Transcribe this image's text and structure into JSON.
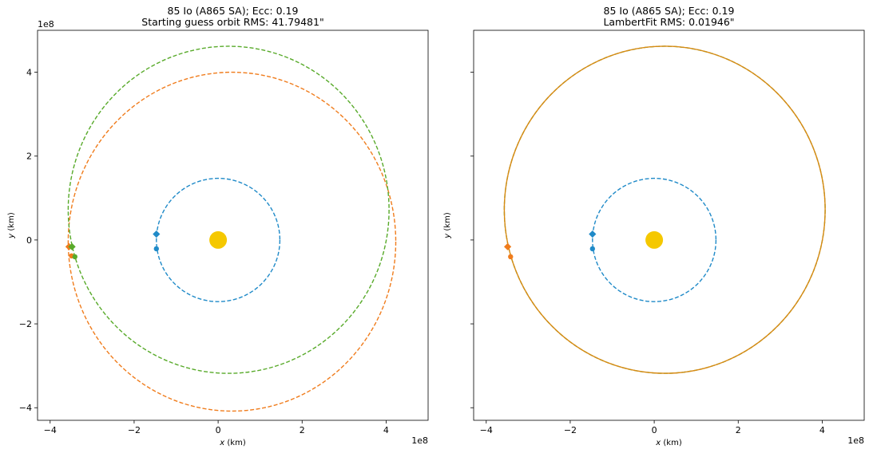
{
  "chart_data": [
    {
      "type": "scatter",
      "title": "85 Io (A865 SA); Ecc: 0.19",
      "subtitle": "Starting guess orbit RMS: 41.79481\"",
      "xlabel_var": "x",
      "xlabel_unit": " (km)",
      "ylabel_var": "y",
      "ylabel_unit": " (km)",
      "x_offset": "1e8",
      "y_offset": "1e8",
      "xlim": [
        -4.3,
        5.0
      ],
      "ylim": [
        -4.3,
        5.0
      ],
      "xticks": [
        -4,
        -2,
        0,
        2,
        4
      ],
      "yticks": [
        -4,
        -2,
        0,
        2,
        4
      ],
      "xtick_labels": [
        "−4",
        "−2",
        "0",
        "2",
        "4"
      ],
      "ytick_labels": [
        "−4",
        "−2",
        "0",
        "2",
        "4"
      ],
      "grid": false,
      "sun": {
        "x": 0,
        "y": 0,
        "color": "#f5c800"
      },
      "orbits": [
        {
          "kind": "earth",
          "cx": 0,
          "cy": 0,
          "rx": 1.47,
          "ry": 1.47,
          "color": "#1f8ac8",
          "style": "dashed"
        },
        {
          "kind": "guess",
          "cx": 0.33,
          "cy": -0.04,
          "rx": 3.9,
          "ry": 4.04,
          "color": "#f07c1c",
          "style": "dashed"
        },
        {
          "kind": "true",
          "cx": 0.25,
          "cy": 0.72,
          "rx": 3.82,
          "ry": 3.9,
          "color": "#58aa2a",
          "style": "dashed"
        }
      ],
      "points": [
        {
          "x": -1.47,
          "y": 0.14,
          "marker": "diamond",
          "color": "#1f8ac8"
        },
        {
          "x": -1.47,
          "y": -0.21,
          "marker": "circle",
          "color": "#1f8ac8"
        },
        {
          "x": -3.55,
          "y": -0.16,
          "marker": "diamond",
          "color": "#f07c1c"
        },
        {
          "x": -3.49,
          "y": -0.38,
          "marker": "circle",
          "color": "#f07c1c"
        },
        {
          "x": -3.48,
          "y": -0.16,
          "marker": "diamond",
          "color": "#58aa2a"
        },
        {
          "x": -3.41,
          "y": -0.4,
          "marker": "circle",
          "color": "#58aa2a"
        }
      ]
    },
    {
      "type": "scatter",
      "title": "85 Io (A865 SA); Ecc: 0.19",
      "subtitle": "LambertFit RMS: 0.01946\"",
      "xlabel_var": "x",
      "xlabel_unit": " (km)",
      "ylabel_var": "y",
      "ylabel_unit": " (km)",
      "x_offset": "1e8",
      "y_offset": "",
      "xlim": [
        -4.3,
        5.0
      ],
      "ylim": [
        -4.3,
        5.0
      ],
      "xticks": [
        -4,
        -2,
        0,
        2,
        4
      ],
      "yticks": [
        -4,
        -2,
        0,
        2,
        4
      ],
      "xtick_labels": [
        "−4",
        "−2",
        "0",
        "2",
        "4"
      ],
      "ytick_labels": [],
      "grid": false,
      "sun": {
        "x": 0,
        "y": 0,
        "color": "#f5c800"
      },
      "orbits": [
        {
          "kind": "earth",
          "cx": 0,
          "cy": 0,
          "rx": 1.47,
          "ry": 1.47,
          "color": "#1f8ac8",
          "style": "dashed"
        },
        {
          "kind": "true",
          "cx": 0.25,
          "cy": 0.72,
          "rx": 3.82,
          "ry": 3.9,
          "color": "#58aa2a",
          "style": "dashed"
        },
        {
          "kind": "fit",
          "cx": 0.25,
          "cy": 0.72,
          "rx": 3.82,
          "ry": 3.9,
          "color": "#d98a14",
          "style": "solid"
        }
      ],
      "points": [
        {
          "x": -1.47,
          "y": 0.14,
          "marker": "diamond",
          "color": "#1f8ac8"
        },
        {
          "x": -1.47,
          "y": -0.21,
          "marker": "circle",
          "color": "#1f8ac8"
        },
        {
          "x": -3.49,
          "y": -0.16,
          "marker": "diamond",
          "color": "#f07c1c"
        },
        {
          "x": -3.42,
          "y": -0.4,
          "marker": "circle",
          "color": "#f07c1c"
        }
      ]
    }
  ]
}
